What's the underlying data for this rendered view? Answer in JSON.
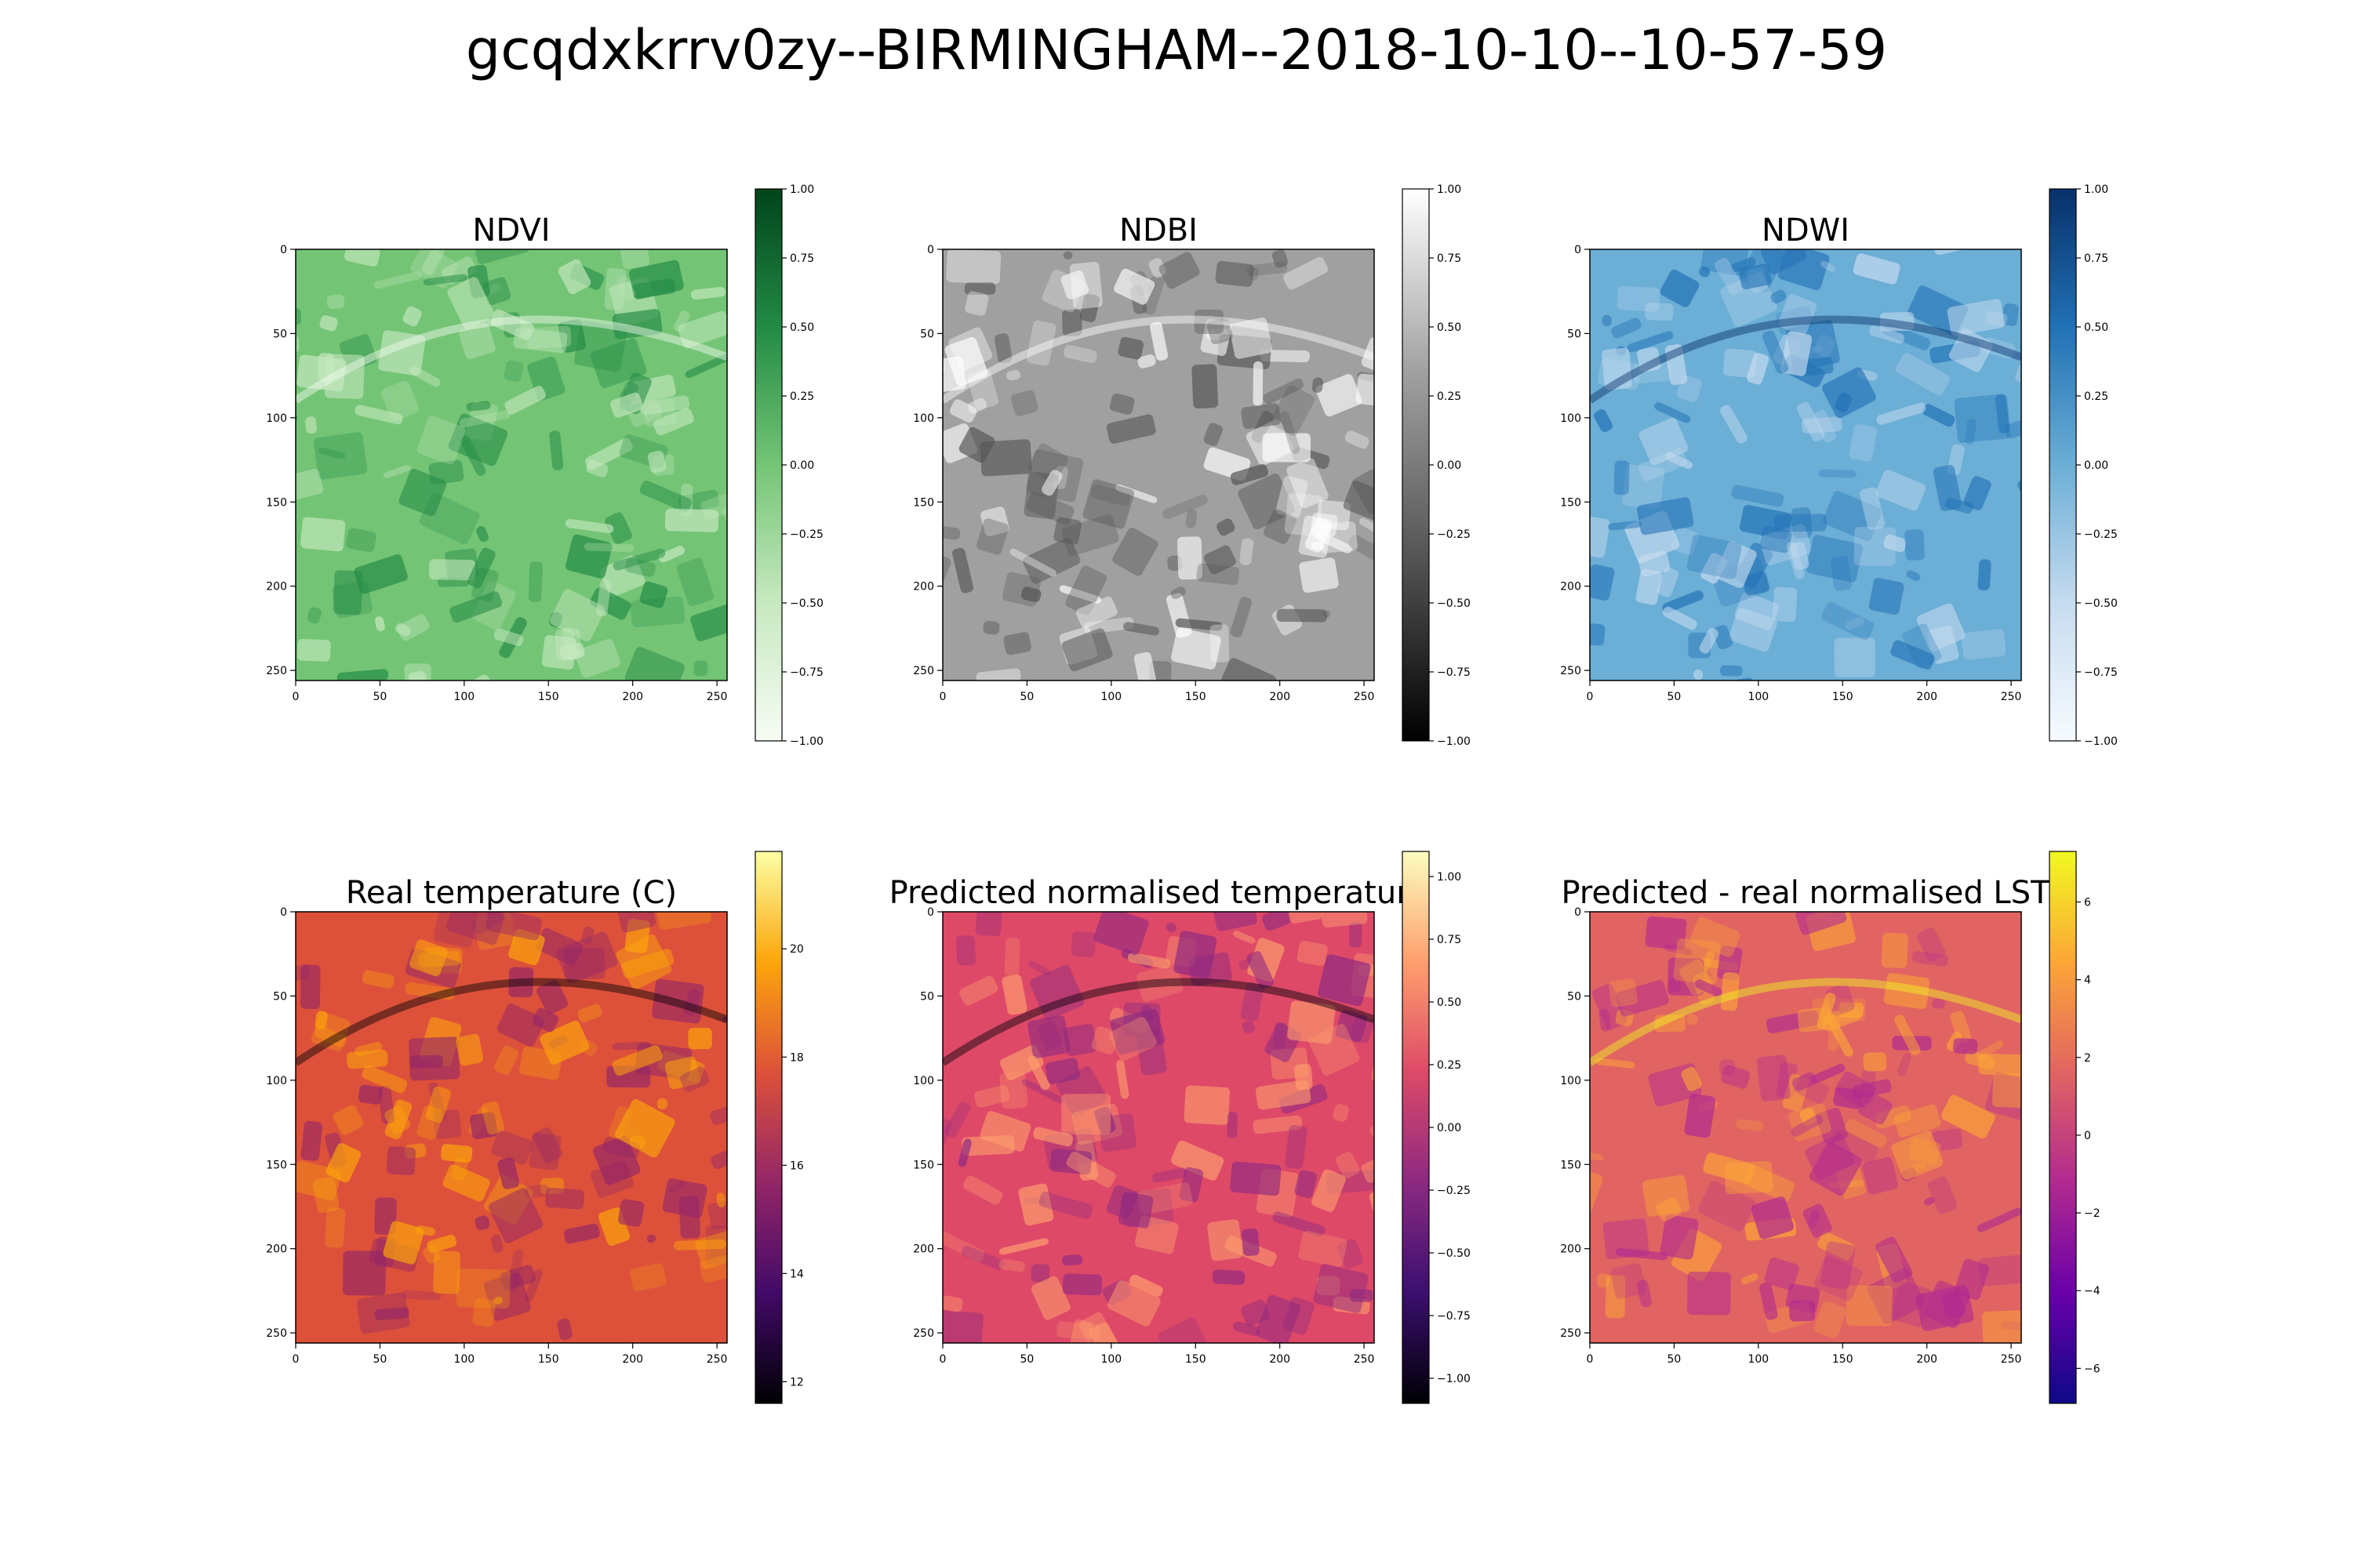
{
  "title": "gcqdxkrrv0zy--BIRMINGHAM--2018-10-10--10-57-59",
  "chart_data": [
    {
      "type": "heatmap",
      "title": "NDVI",
      "x_ticks": [
        0,
        50,
        100,
        150,
        200,
        250
      ],
      "y_ticks": [
        0,
        50,
        100,
        150,
        200,
        250
      ],
      "image_extent": [
        0,
        256
      ],
      "colormap": "Greens",
      "colorbar_range": [
        -1.0,
        1.0
      ],
      "colorbar_ticks": [
        "1.00",
        "0.75",
        "0.50",
        "0.25",
        "0.00",
        "−0.25",
        "−0.50",
        "−0.75",
        "−1.00"
      ],
      "colorbar_tick_values": [
        1.0,
        0.75,
        0.5,
        0.25,
        0.0,
        -0.25,
        -0.5,
        -0.75,
        -1.0
      ],
      "colors": [
        "#f7fcf5",
        "#c7e9c0",
        "#74c476",
        "#238b45",
        "#00441b"
      ]
    },
    {
      "type": "heatmap",
      "title": "NDBI",
      "x_ticks": [
        0,
        50,
        100,
        150,
        200,
        250
      ],
      "y_ticks": [
        0,
        50,
        100,
        150,
        200,
        250
      ],
      "image_extent": [
        0,
        256
      ],
      "colormap": "Greys_r",
      "colorbar_range": [
        -1.0,
        1.0
      ],
      "colorbar_ticks": [
        "1.00",
        "0.75",
        "0.50",
        "0.25",
        "0.00",
        "−0.25",
        "−0.50",
        "−0.75",
        "−1.00"
      ],
      "colorbar_tick_values": [
        1.0,
        0.75,
        0.5,
        0.25,
        0.0,
        -0.25,
        -0.5,
        -0.75,
        -1.0
      ],
      "colors": [
        "#000000",
        "#555555",
        "#a0a0a0",
        "#ffffff"
      ]
    },
    {
      "type": "heatmap",
      "title": "NDWI",
      "x_ticks": [
        0,
        50,
        100,
        150,
        200,
        250
      ],
      "y_ticks": [
        0,
        50,
        100,
        150,
        200,
        250
      ],
      "image_extent": [
        0,
        256
      ],
      "colormap": "Blues",
      "colorbar_range": [
        -1.0,
        1.0
      ],
      "colorbar_ticks": [
        "1.00",
        "0.75",
        "0.50",
        "0.25",
        "0.00",
        "−0.25",
        "−0.50",
        "−0.75",
        "−1.00"
      ],
      "colorbar_tick_values": [
        1.0,
        0.75,
        0.5,
        0.25,
        0.0,
        -0.25,
        -0.5,
        -0.75,
        -1.0
      ],
      "colors": [
        "#f7fbff",
        "#c6dbef",
        "#6baed6",
        "#2171b5",
        "#08306b"
      ]
    },
    {
      "type": "heatmap",
      "title": "Real temperature (C)",
      "x_ticks": [
        0,
        50,
        100,
        150,
        200,
        250
      ],
      "y_ticks": [
        0,
        50,
        100,
        150,
        200,
        250
      ],
      "image_extent": [
        0,
        256
      ],
      "colormap": "inferno",
      "colorbar_range": [
        11.6,
        21.8
      ],
      "colorbar_ticks": [
        "20",
        "18",
        "16",
        "14",
        "12"
      ],
      "colorbar_tick_values": [
        20,
        18,
        16,
        14,
        12
      ],
      "colors": [
        "#000004",
        "#420a68",
        "#932667",
        "#dd513a",
        "#fca50a",
        "#fcffa4"
      ]
    },
    {
      "type": "heatmap",
      "title": "Predicted normalised temperature",
      "x_ticks": [
        0,
        50,
        100,
        150,
        200,
        250
      ],
      "y_ticks": [
        0,
        50,
        100,
        150,
        200,
        250
      ],
      "image_extent": [
        0,
        256
      ],
      "colormap": "magma",
      "colorbar_range": [
        -1.1,
        1.1
      ],
      "colorbar_ticks": [
        "1.00",
        "0.75",
        "0.50",
        "0.25",
        "0.00",
        "−0.25",
        "−0.50",
        "−0.75",
        "−1.00"
      ],
      "colorbar_tick_values": [
        1.0,
        0.75,
        0.5,
        0.25,
        0.0,
        -0.25,
        -0.5,
        -0.75,
        -1.0
      ],
      "colors": [
        "#000004",
        "#3b0f70",
        "#8c2981",
        "#de4968",
        "#fe9f6d",
        "#fcfdbf"
      ]
    },
    {
      "type": "heatmap",
      "title": "Predicted - real normalised LST",
      "x_ticks": [
        0,
        50,
        100,
        150,
        200,
        250
      ],
      "y_ticks": [
        0,
        50,
        100,
        150,
        200,
        250
      ],
      "image_extent": [
        0,
        256
      ],
      "colormap": "plasma",
      "colorbar_range": [
        -6.9,
        7.3
      ],
      "colorbar_ticks": [
        "6",
        "4",
        "2",
        "0",
        "−2",
        "−4",
        "−6"
      ],
      "colorbar_tick_values": [
        6,
        4,
        2,
        0,
        -2,
        -4,
        -6
      ],
      "colors": [
        "#0d0887",
        "#6a00a8",
        "#b12a90",
        "#e16462",
        "#fca636",
        "#f0f921"
      ]
    }
  ]
}
